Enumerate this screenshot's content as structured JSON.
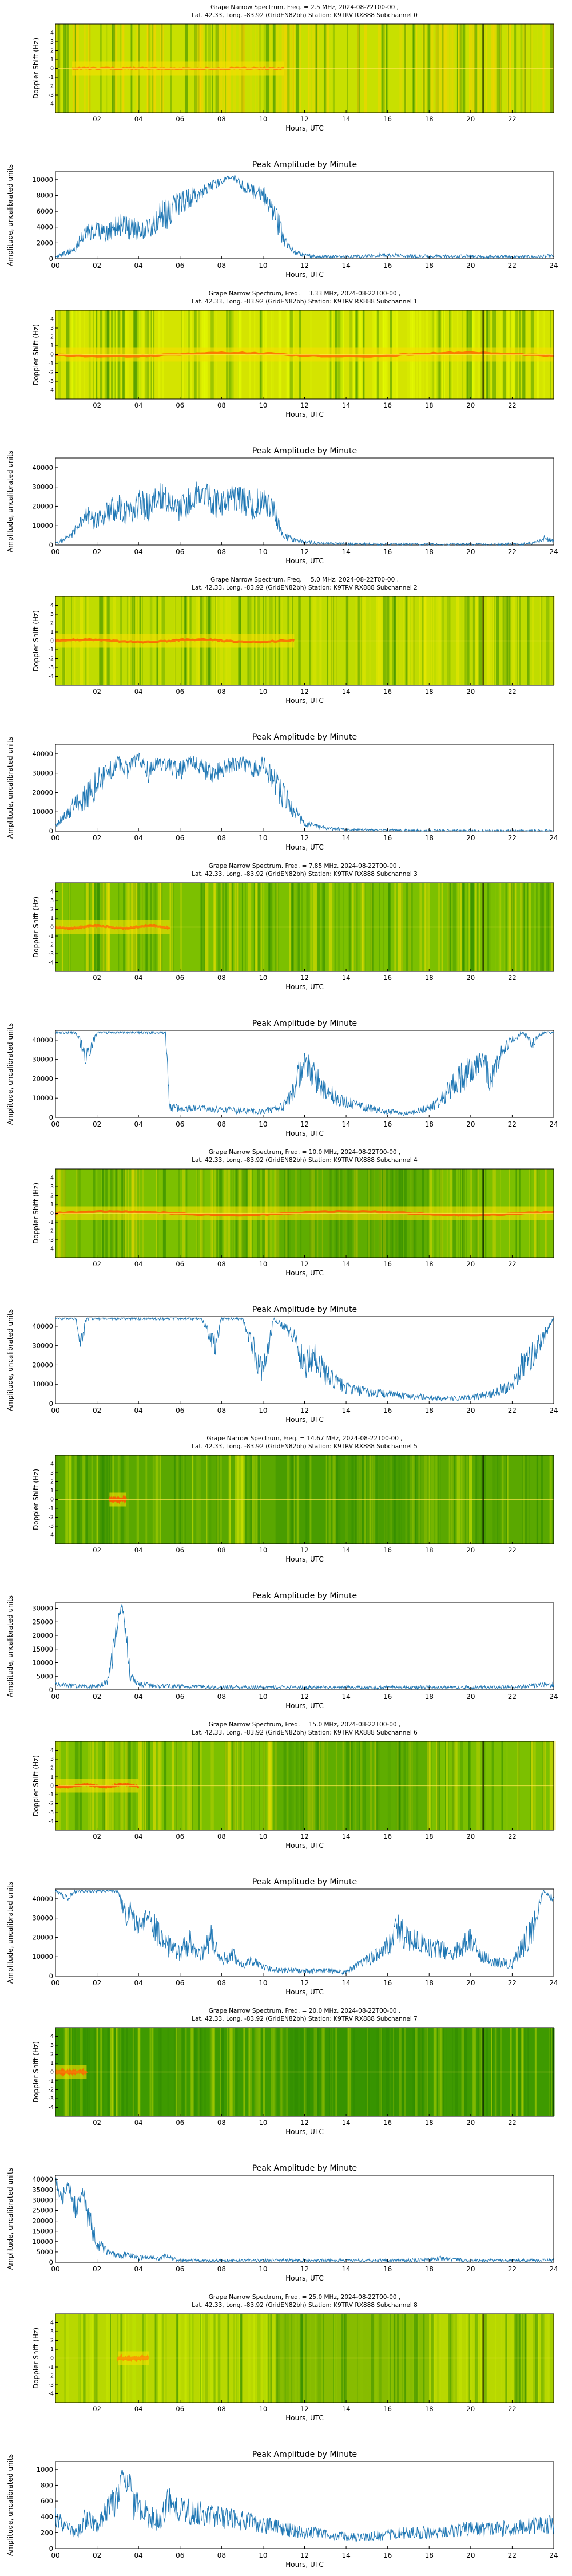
{
  "figure": {
    "amplitude_title": "Peak Amplitude by Minute",
    "x_label": "Hours, UTC",
    "spectrum_y_label": "Doppler Shift (Hz)",
    "amplitude_y_label": "Amplitude, uncalibrated units",
    "spectrum_x_ticks": [
      "02",
      "04",
      "06",
      "08",
      "10",
      "12",
      "14",
      "16",
      "18",
      "20",
      "22"
    ],
    "amplitude_x_ticks": [
      "00",
      "02",
      "04",
      "06",
      "08",
      "10",
      "12",
      "14",
      "16",
      "18",
      "20",
      "22",
      "24"
    ],
    "doppler_ticks": [
      "-4",
      "-3",
      "-2",
      "-1",
      "0",
      "1",
      "2",
      "3",
      "4"
    ],
    "colors": {
      "line": "#1f77b4",
      "spec_bg": "#2a8a00",
      "spec_mid": "#9acd00",
      "spec_hot": "#ff6a00"
    }
  },
  "chart_data": [
    {
      "type": "heatmap",
      "title": "Grape Narrow Spectrum, Freq. = 2.5 MHz, 2024-08-22T00-00 ,",
      "subtitle": "Lat.  42.33, Long. -83.92 (GridEN82bh) Station: K9TRV RX888 Subchannel 0",
      "xlabel": "Hours, UTC",
      "ylabel": "Doppler Shift (Hz)",
      "xlim": [
        0,
        24
      ],
      "ylim": [
        -5,
        5
      ],
      "marker_hour": 20.6
    },
    {
      "type": "line",
      "title": "Peak Amplitude by Minute",
      "xlabel": "Hours, UTC",
      "ylabel": "Amplitude, uncalibrated units",
      "xlim": [
        0,
        24
      ],
      "ylim": [
        0,
        11000
      ],
      "yticks": [
        0,
        2000,
        4000,
        6000,
        8000,
        10000
      ],
      "x": [
        0,
        0.5,
        1,
        1.5,
        2,
        2.5,
        3,
        3.5,
        4,
        4.5,
        5,
        5.5,
        6,
        6.5,
        7,
        7.5,
        8,
        8.5,
        9,
        9.5,
        10,
        10.5,
        11,
        11.5,
        12,
        13,
        14,
        15,
        16,
        17,
        18,
        19,
        20,
        21,
        22,
        23,
        24
      ],
      "y": [
        200,
        700,
        1500,
        3500,
        4200,
        3000,
        4500,
        3800,
        3700,
        4200,
        5200,
        5800,
        7000,
        7600,
        8500,
        9200,
        9800,
        10500,
        9200,
        8500,
        8200,
        6000,
        2500,
        800,
        400,
        300,
        250,
        300,
        500,
        350,
        300,
        280,
        300,
        250,
        250,
        220,
        350
      ]
    },
    {
      "type": "heatmap",
      "title": "Grape Narrow Spectrum, Freq. = 3.33 MHz, 2024-08-22T00-00 ,",
      "subtitle": "Lat.  42.33, Long. -83.92 (GridEN82bh) Station: K9TRV RX888 Subchannel 1",
      "xlabel": "Hours, UTC",
      "ylabel": "Doppler Shift (Hz)",
      "xlim": [
        0,
        24
      ],
      "ylim": [
        -5,
        5
      ],
      "marker_hour": 20.6
    },
    {
      "type": "line",
      "title": "Peak Amplitude by Minute",
      "xlabel": "Hours, UTC",
      "ylabel": "Amplitude, uncalibrated units",
      "xlim": [
        0,
        24
      ],
      "ylim": [
        0,
        45000
      ],
      "yticks": [
        0,
        10000,
        20000,
        30000,
        40000
      ],
      "x": [
        0,
        0.5,
        1,
        1.5,
        2,
        2.5,
        3,
        3.5,
        4,
        4.5,
        5,
        5.5,
        6,
        6.5,
        7,
        7.5,
        8,
        8.5,
        9,
        9.5,
        10,
        10.5,
        11,
        11.5,
        12,
        13,
        14,
        15,
        16,
        17,
        18,
        19,
        20,
        21,
        22,
        23,
        23.5,
        24
      ],
      "y": [
        1000,
        3000,
        8000,
        15000,
        12000,
        18000,
        20000,
        16000,
        22000,
        19000,
        25000,
        21000,
        18000,
        24000,
        28000,
        22000,
        20000,
        26000,
        23000,
        21000,
        22000,
        17000,
        5000,
        2500,
        1500,
        800,
        600,
        500,
        500,
        400,
        400,
        400,
        400,
        400,
        500,
        800,
        3500,
        2000
      ]
    },
    {
      "type": "heatmap",
      "title": "Grape Narrow Spectrum, Freq. = 5.0 MHz, 2024-08-22T00-00 ,",
      "subtitle": "Lat.  42.33, Long. -83.92 (GridEN82bh) Station: K9TRV RX888 Subchannel 2",
      "xlabel": "Hours, UTC",
      "ylabel": "Doppler Shift (Hz)",
      "xlim": [
        0,
        24
      ],
      "ylim": [
        -5,
        5
      ],
      "marker_hour": 20.6
    },
    {
      "type": "line",
      "title": "Peak Amplitude by Minute",
      "xlabel": "Hours, UTC",
      "ylabel": "Amplitude, uncalibrated units",
      "xlim": [
        0,
        24
      ],
      "ylim": [
        0,
        45000
      ],
      "yticks": [
        0,
        10000,
        20000,
        30000,
        40000
      ],
      "x": [
        0,
        0.5,
        1,
        1.5,
        2,
        2.5,
        3,
        3.5,
        4,
        4.5,
        5,
        5.5,
        6,
        6.5,
        7,
        7.5,
        8,
        8.5,
        9,
        9.5,
        10,
        10.5,
        11,
        11.5,
        12,
        13,
        14,
        15,
        16,
        17,
        18,
        19,
        20,
        21,
        22,
        23,
        24
      ],
      "y": [
        2000,
        9000,
        15000,
        18000,
        25000,
        30000,
        35000,
        32000,
        38000,
        30000,
        35000,
        33000,
        31000,
        36000,
        33000,
        30000,
        32000,
        34000,
        36000,
        31000,
        35000,
        25000,
        18000,
        10000,
        4000,
        1500,
        800,
        600,
        500,
        400,
        300,
        300,
        300,
        250,
        250,
        250,
        300
      ]
    },
    {
      "type": "heatmap",
      "title": "Grape Narrow Spectrum, Freq. = 7.85 MHz, 2024-08-22T00-00 ,",
      "subtitle": "Lat.  42.33, Long. -83.92 (GridEN82bh) Station: K9TRV RX888 Subchannel 3",
      "xlabel": "Hours, UTC",
      "ylabel": "Doppler Shift (Hz)",
      "xlim": [
        0,
        24
      ],
      "ylim": [
        -5,
        5
      ],
      "marker_hour": 20.6
    },
    {
      "type": "line",
      "title": "Peak Amplitude by Minute",
      "xlabel": "Hours, UTC",
      "ylabel": "Amplitude, uncalibrated units",
      "xlim": [
        0,
        24
      ],
      "ylim": [
        0,
        45000
      ],
      "yticks": [
        0,
        10000,
        20000,
        30000,
        40000
      ],
      "x": [
        0,
        0.5,
        1,
        1.5,
        2,
        2.5,
        3,
        3.5,
        4,
        4.5,
        5,
        5.3,
        5.5,
        6,
        7,
        8,
        9,
        10,
        11,
        11.5,
        12,
        12.5,
        13,
        13.5,
        14,
        15,
        16,
        17,
        18,
        18.5,
        19,
        19.5,
        20,
        20.5,
        21,
        21.5,
        22,
        22.5,
        23,
        23.5,
        24
      ],
      "y": [
        44000,
        44000,
        44000,
        30000,
        44000,
        44000,
        44000,
        44000,
        44000,
        44000,
        44000,
        44000,
        5000,
        5000,
        4500,
        4000,
        3500,
        3000,
        6000,
        15000,
        30000,
        20000,
        15000,
        10000,
        8000,
        5000,
        3000,
        2000,
        5000,
        8000,
        15000,
        20000,
        25000,
        30000,
        20000,
        35000,
        40000,
        44000,
        38000,
        44000,
        44000
      ]
    },
    {
      "type": "heatmap",
      "title": "Grape Narrow Spectrum, Freq. = 10.0 MHz, 2024-08-22T00-00 ,",
      "subtitle": "Lat.  42.33, Long. -83.92 (GridEN82bh) Station: K9TRV RX888 Subchannel 4",
      "xlabel": "Hours, UTC",
      "ylabel": "Doppler Shift (Hz)",
      "xlim": [
        0,
        24
      ],
      "ylim": [
        -5,
        5
      ],
      "marker_hour": 20.6
    },
    {
      "type": "line",
      "title": "Peak Amplitude by Minute",
      "xlabel": "Hours, UTC",
      "ylabel": "Amplitude, uncalibrated units",
      "xlim": [
        0,
        24
      ],
      "ylim": [
        0,
        45000
      ],
      "yticks": [
        0,
        10000,
        20000,
        30000,
        40000
      ],
      "x": [
        0,
        0.5,
        1,
        1.2,
        1.5,
        2,
        3,
        4,
        5,
        6,
        7,
        7.7,
        8,
        9,
        9.5,
        10,
        10.5,
        11,
        11.5,
        12,
        12.5,
        13,
        14,
        15,
        16,
        17,
        18,
        19,
        20,
        21,
        22,
        22.5,
        23,
        23.5,
        24
      ],
      "y": [
        44000,
        44000,
        44000,
        30000,
        44000,
        44000,
        44000,
        44000,
        44000,
        44000,
        44000,
        30000,
        44000,
        44000,
        30000,
        15000,
        44000,
        40000,
        35000,
        20000,
        25000,
        15000,
        8000,
        6000,
        5000,
        4000,
        3000,
        2500,
        3000,
        5000,
        10000,
        20000,
        25000,
        35000,
        44000
      ]
    },
    {
      "type": "heatmap",
      "title": "Grape Narrow Spectrum, Freq. = 14.67 MHz, 2024-08-22T00-00 ,",
      "subtitle": "Lat.  42.33, Long. -83.92 (GridEN82bh) Station: K9TRV RX888 Subchannel 5",
      "xlabel": "Hours, UTC",
      "ylabel": "Doppler Shift (Hz)",
      "xlim": [
        0,
        24
      ],
      "ylim": [
        -5,
        5
      ],
      "marker_hour": 20.6
    },
    {
      "type": "line",
      "title": "Peak Amplitude by Minute",
      "xlabel": "Hours, UTC",
      "ylabel": "Amplitude, uncalibrated units",
      "xlim": [
        0,
        24
      ],
      "ylim": [
        0,
        32000
      ],
      "yticks": [
        0,
        5000,
        10000,
        15000,
        20000,
        25000,
        30000
      ],
      "x": [
        0,
        1,
        2,
        2.5,
        2.8,
        3,
        3.2,
        3.4,
        3.6,
        4,
        5,
        6,
        8,
        10,
        12,
        14,
        16,
        18,
        20,
        22,
        24
      ],
      "y": [
        2000,
        1500,
        1200,
        3000,
        15000,
        25000,
        31000,
        20000,
        5000,
        2000,
        1500,
        1200,
        1000,
        1000,
        900,
        900,
        900,
        900,
        900,
        1000,
        2000
      ]
    },
    {
      "type": "heatmap",
      "title": "Grape Narrow Spectrum, Freq. = 15.0 MHz, 2024-08-22T00-00 ,",
      "subtitle": "Lat.  42.33, Long. -83.92 (GridEN82bh) Station: K9TRV RX888 Subchannel 6",
      "xlabel": "Hours, UTC",
      "ylabel": "Doppler Shift (Hz)",
      "xlim": [
        0,
        24
      ],
      "ylim": [
        -5,
        5
      ],
      "marker_hour": 20.6
    },
    {
      "type": "line",
      "title": "Peak Amplitude by Minute",
      "xlabel": "Hours, UTC",
      "ylabel": "Amplitude, uncalibrated units",
      "xlim": [
        0,
        24
      ],
      "ylim": [
        0,
        45000
      ],
      "yticks": [
        0,
        10000,
        20000,
        30000,
        40000
      ],
      "x": [
        0,
        0.5,
        1,
        2,
        3,
        3.4,
        3.6,
        4,
        4.5,
        5,
        5.5,
        6,
        6.5,
        7,
        7.5,
        8,
        8.5,
        9,
        9.5,
        10,
        11,
        12,
        13,
        14,
        15,
        16,
        16.5,
        17,
        18,
        19,
        20,
        20.5,
        21,
        22,
        22.5,
        23,
        23.5,
        24
      ],
      "y": [
        44000,
        40000,
        44000,
        44000,
        44000,
        30000,
        35000,
        25000,
        30000,
        20000,
        15000,
        12000,
        18000,
        10000,
        20000,
        8000,
        12000,
        5000,
        8000,
        4000,
        3000,
        2500,
        3000,
        2000,
        8000,
        15000,
        25000,
        20000,
        15000,
        12000,
        18000,
        10000,
        8000,
        6000,
        15000,
        25000,
        44000,
        40000
      ]
    },
    {
      "type": "heatmap",
      "title": "Grape Narrow Spectrum, Freq. = 20.0 MHz, 2024-08-22T00-00 ,",
      "subtitle": "Lat.  42.33, Long. -83.92 (GridEN82bh) Station: K9TRV RX888 Subchannel 7",
      "xlabel": "Hours, UTC",
      "ylabel": "Doppler Shift (Hz)",
      "xlim": [
        0,
        24
      ],
      "ylim": [
        -5,
        5
      ],
      "marker_hour": 20.6
    },
    {
      "type": "line",
      "title": "Peak Amplitude by Minute",
      "xlabel": "Hours, UTC",
      "ylabel": "Amplitude, uncalibrated units",
      "xlim": [
        0,
        24
      ],
      "ylim": [
        0,
        42000
      ],
      "yticks": [
        0,
        5000,
        10000,
        15000,
        20000,
        25000,
        30000,
        35000,
        40000
      ],
      "x": [
        0,
        0.3,
        0.6,
        1,
        1.3,
        1.6,
        2,
        2.5,
        3,
        3.5,
        4,
        4.5,
        5,
        5.3,
        5.6,
        6,
        8,
        10,
        12,
        14,
        16,
        18,
        18.5,
        19,
        20,
        22,
        24
      ],
      "y": [
        40000,
        30000,
        38000,
        25000,
        35000,
        20000,
        10000,
        5000,
        3000,
        4000,
        2000,
        3000,
        1500,
        3000,
        2000,
        1000,
        900,
        900,
        900,
        900,
        900,
        1200,
        2000,
        1500,
        900,
        900,
        900
      ]
    },
    {
      "type": "heatmap",
      "title": "Grape Narrow Spectrum, Freq. = 25.0 MHz, 2024-08-22T00-00 ,",
      "subtitle": "Lat.  42.33, Long. -83.92 (GridEN82bh) Station: K9TRV RX888 Subchannel 8",
      "xlabel": "Hours, UTC",
      "ylabel": "Doppler Shift (Hz)",
      "xlim": [
        0,
        24
      ],
      "ylim": [
        -5,
        5
      ],
      "marker_hour": 20.6
    },
    {
      "type": "line",
      "title": "Peak Amplitude by Minute",
      "xlabel": "Hours, UTC",
      "ylabel": "Amplitude, uncalibrated units",
      "xlim": [
        0,
        24
      ],
      "ylim": [
        0,
        1100
      ],
      "yticks": [
        0,
        200,
        400,
        600,
        800,
        1000
      ],
      "x": [
        0,
        0.5,
        1,
        1.5,
        2,
        2.5,
        3,
        3.2,
        3.4,
        3.6,
        3.8,
        4,
        4.5,
        5,
        5.5,
        6,
        7,
        8,
        9,
        10,
        11,
        12,
        13,
        14,
        15,
        16,
        17,
        18,
        19,
        20,
        21,
        22,
        23,
        24
      ],
      "y": [
        400,
        250,
        200,
        400,
        300,
        500,
        600,
        1000,
        800,
        900,
        500,
        600,
        400,
        350,
        600,
        500,
        450,
        400,
        350,
        300,
        250,
        200,
        180,
        150,
        150,
        180,
        200,
        200,
        220,
        250,
        250,
        250,
        300,
        300
      ]
    }
  ]
}
